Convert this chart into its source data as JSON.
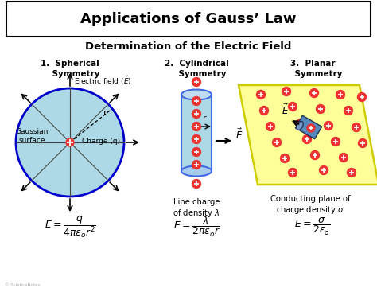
{
  "title": "Applications of Gauss’ Law",
  "subtitle": "Determination of the Electric Field",
  "bg_color": "#ffffff",
  "sphere_color": "#add8e6",
  "sphere_border": "#0000cc",
  "cylinder_color": "#add8e6",
  "cylinder_border": "#4169e1",
  "plane_color": "#ffff99",
  "plane_border": "#cccc00",
  "charge_color": "#ee3333",
  "label_gaussian": "Gaussian\nsurface",
  "label_charge": "Charge (q)",
  "label_efield_sphere": "Electric field (€E€)",
  "label_r": "r",
  "label_line_charge": "Line charge\nof density λ",
  "label_plane_charge": "Conducting plane of\ncharge density σ",
  "sec1": "1.  Spherical\n    Symmetry",
  "sec2": "2.  Cylindrical\n    Symmetry",
  "sec3": "3.  Planar\n    Symmetry"
}
